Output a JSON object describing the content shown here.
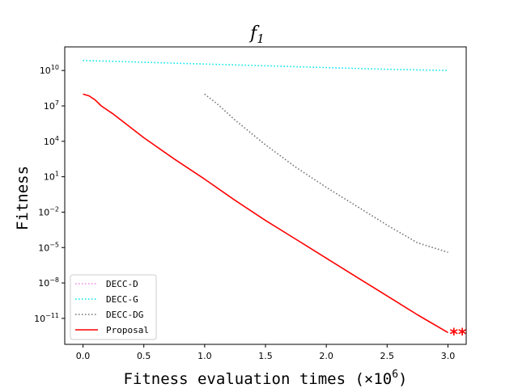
{
  "chart_data": {
    "type": "line",
    "title_base": "f",
    "title_sub": "1",
    "xlabel_text": "Fitness evaluation times (×10",
    "xlabel_exp": "6",
    "xlabel_close": ")",
    "ylabel": "Fitness",
    "y_scale": "log",
    "xlim": [
      -0.15,
      3.15
    ],
    "ylim_log10": [
      -13.2,
      12.0
    ],
    "x_ticks": [
      {
        "value": 0.0,
        "label": "0.0"
      },
      {
        "value": 0.5,
        "label": "0.5"
      },
      {
        "value": 1.0,
        "label": "1.0"
      },
      {
        "value": 1.5,
        "label": "1.5"
      },
      {
        "value": 2.0,
        "label": "2.0"
      },
      {
        "value": 2.5,
        "label": "2.5"
      },
      {
        "value": 3.0,
        "label": "3.0"
      }
    ],
    "y_ticks": [
      {
        "exp": 10,
        "base": "10",
        "sup": "10"
      },
      {
        "exp": 7,
        "base": "10",
        "sup": "7"
      },
      {
        "exp": 4,
        "base": "10",
        "sup": "4"
      },
      {
        "exp": 1,
        "base": "10",
        "sup": "1"
      },
      {
        "exp": -2,
        "base": "10",
        "sup": "−2"
      },
      {
        "exp": -5,
        "base": "10",
        "sup": "−5"
      },
      {
        "exp": -8,
        "base": "10",
        "sup": "−8"
      },
      {
        "exp": -11,
        "base": "10",
        "sup": "−11"
      }
    ],
    "legend_position": "lower-left",
    "series": [
      {
        "name": "DECC-D",
        "color": "#ee82ee",
        "dash": "dotted",
        "x": [],
        "y_log10": []
      },
      {
        "name": "DECC-G",
        "color": "#00e5ee",
        "dash": "dotted",
        "x": [
          0.0,
          0.5,
          1.0,
          1.5,
          2.0,
          2.5,
          3.0
        ],
        "y_log10": [
          10.85,
          10.7,
          10.55,
          10.4,
          10.25,
          10.1,
          10.0
        ]
      },
      {
        "name": "DECC-DG",
        "color": "#707070",
        "dash": "dotted",
        "x": [
          1.0,
          1.1,
          1.25,
          1.5,
          1.75,
          2.0,
          2.25,
          2.5,
          2.75,
          3.0
        ],
        "y_log10": [
          8.0,
          7.2,
          5.8,
          3.7,
          1.8,
          0.1,
          -1.5,
          -3.1,
          -4.6,
          -5.4
        ]
      },
      {
        "name": "Proposal",
        "color": "#ff0000",
        "dash": "solid",
        "x": [
          0.0,
          0.05,
          0.1,
          0.15,
          0.25,
          0.5,
          0.75,
          1.0,
          1.25,
          1.5,
          1.75,
          2.0,
          2.25,
          2.5,
          2.75,
          3.0
        ],
        "y_log10": [
          8.0,
          7.85,
          7.5,
          7.0,
          6.3,
          4.3,
          2.5,
          0.8,
          -1.0,
          -2.7,
          -4.3,
          -5.9,
          -7.5,
          -9.1,
          -10.7,
          -12.2
        ]
      }
    ],
    "annotation": {
      "text": "**",
      "color": "#ff0000",
      "x": 3.0,
      "y_log10": -12.0
    }
  }
}
